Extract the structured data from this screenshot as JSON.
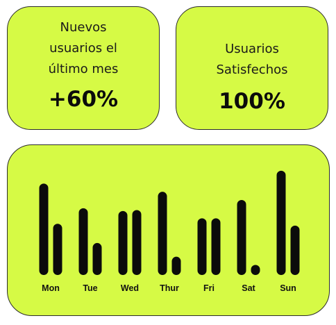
{
  "stats": [
    {
      "label": "Nuevos usuarios el último mes",
      "value": "+60%"
    },
    {
      "label": "Usuarios Satisfechos",
      "value": "100%"
    }
  ],
  "colors": {
    "card": "#d6fa45",
    "bar": "#0b0b0b",
    "border": "#2b2b2b"
  },
  "chart_data": {
    "type": "bar",
    "categories": [
      "Mon",
      "Tue",
      "Wed",
      "Thur",
      "Fri",
      "Sat",
      "Sun"
    ],
    "series": [
      {
        "values": [
          100,
          73,
          70,
          91,
          62,
          82,
          114
        ]
      },
      {
        "values": [
          56,
          35,
          71,
          20,
          62,
          11,
          54
        ]
      }
    ],
    "ylim": [
      0,
      120
    ],
    "grid": false,
    "xlabel": "",
    "ylabel": ""
  }
}
